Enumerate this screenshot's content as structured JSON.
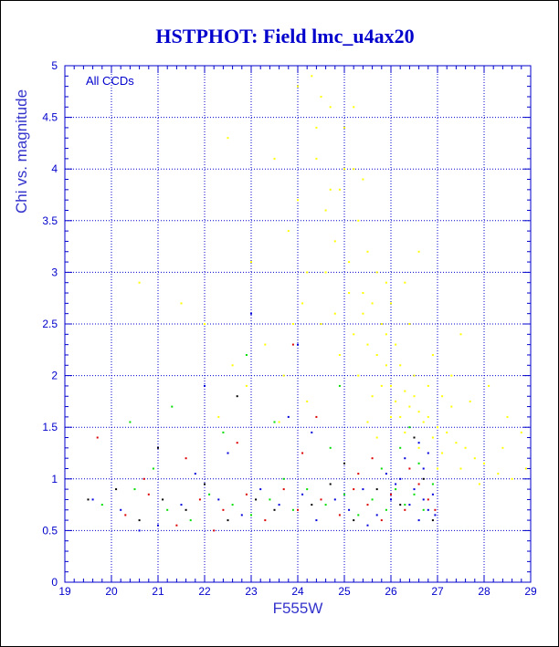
{
  "chart_data": {
    "type": "scatter",
    "title": "HSTPHOT: Field lmc_u4ax20",
    "xlabel": "F555W",
    "ylabel": "Chi vs. magnitude",
    "annotation": "All CCDs",
    "xlim": [
      19,
      29
    ],
    "ylim": [
      0,
      5
    ],
    "xticks": [
      19,
      20,
      21,
      22,
      23,
      24,
      25,
      26,
      27,
      28,
      29
    ],
    "yticks": [
      0,
      0.5,
      1,
      1.5,
      2,
      2.5,
      3,
      3.5,
      4,
      4.5,
      5
    ],
    "grid": true,
    "colors": {
      "axis": "#0000cc",
      "grid": "#0000cc",
      "title": "#0000cc",
      "yellow": "#ffff00",
      "green": "#00dd00",
      "red": "#dd0000",
      "blue": "#0000dd",
      "black": "#000000"
    },
    "series": [
      {
        "color": "#0000dd",
        "points": [
          [
            19.6,
            0.8
          ],
          [
            20.2,
            0.7
          ],
          [
            21.0,
            0.55
          ],
          [
            21.5,
            0.75
          ],
          [
            22.3,
            0.8
          ],
          [
            22.8,
            0.65
          ],
          [
            23.2,
            0.9
          ],
          [
            23.6,
            0.75
          ],
          [
            24.1,
            0.85
          ],
          [
            24.4,
            0.6
          ],
          [
            24.8,
            0.8
          ],
          [
            25.1,
            0.7
          ],
          [
            25.4,
            0.9
          ],
          [
            25.7,
            0.65
          ],
          [
            26.0,
            0.8
          ],
          [
            26.2,
            1.0
          ],
          [
            26.4,
            0.75
          ],
          [
            26.5,
            0.9
          ],
          [
            26.6,
            0.6
          ],
          [
            26.7,
            1.1
          ],
          [
            26.8,
            0.7
          ],
          [
            26.9,
            0.85
          ],
          [
            26.95,
            0.65
          ],
          [
            26.3,
            1.2
          ],
          [
            25.9,
            1.05
          ],
          [
            26.6,
            1.35
          ],
          [
            26.8,
            1.25
          ],
          [
            24.3,
            1.45
          ],
          [
            23.8,
            1.6
          ],
          [
            22.5,
            1.25
          ],
          [
            21.8,
            1.05
          ],
          [
            20.6,
            0.5
          ],
          [
            25.5,
            0.55
          ],
          [
            26.1,
            0.95
          ],
          [
            26.7,
            0.8
          ],
          [
            24.0,
            2.3
          ],
          [
            23.0,
            2.6
          ],
          [
            22.0,
            1.9
          ]
        ]
      },
      {
        "color": "#00dd00",
        "points": [
          [
            19.8,
            0.75
          ],
          [
            20.5,
            0.9
          ],
          [
            21.2,
            0.7
          ],
          [
            21.7,
            0.6
          ],
          [
            22.1,
            0.85
          ],
          [
            22.6,
            0.75
          ],
          [
            23.0,
            0.65
          ],
          [
            23.4,
            0.8
          ],
          [
            23.9,
            0.7
          ],
          [
            24.2,
            0.9
          ],
          [
            24.6,
            0.75
          ],
          [
            25.0,
            0.85
          ],
          [
            25.3,
            0.65
          ],
          [
            25.6,
            0.8
          ],
          [
            25.9,
            0.7
          ],
          [
            26.1,
            0.9
          ],
          [
            26.3,
            0.75
          ],
          [
            26.5,
            0.85
          ],
          [
            26.7,
            0.7
          ],
          [
            26.9,
            0.95
          ],
          [
            26.6,
            1.15
          ],
          [
            26.2,
            1.3
          ],
          [
            25.8,
            1.1
          ],
          [
            24.7,
            1.3
          ],
          [
            23.5,
            1.55
          ],
          [
            22.4,
            1.45
          ],
          [
            21.3,
            1.7
          ],
          [
            20.4,
            1.55
          ],
          [
            22.9,
            2.2
          ],
          [
            24.9,
            1.9
          ],
          [
            26.4,
            1.5
          ],
          [
            20.9,
            1.1
          ],
          [
            23.7,
            1.0
          ]
        ]
      },
      {
        "color": "#dd0000",
        "points": [
          [
            19.7,
            1.4
          ],
          [
            20.3,
            0.65
          ],
          [
            20.8,
            0.85
          ],
          [
            21.4,
            0.55
          ],
          [
            21.9,
            0.8
          ],
          [
            22.4,
            0.7
          ],
          [
            22.9,
            0.85
          ],
          [
            23.3,
            0.6
          ],
          [
            23.7,
            0.9
          ],
          [
            24.0,
            0.7
          ],
          [
            24.5,
            0.8
          ],
          [
            24.9,
            0.65
          ],
          [
            25.2,
            0.9
          ],
          [
            25.5,
            0.75
          ],
          [
            25.8,
            0.6
          ],
          [
            26.0,
            0.85
          ],
          [
            26.3,
            0.7
          ],
          [
            26.6,
            0.95
          ],
          [
            26.8,
            0.8
          ],
          [
            26.95,
            0.7
          ],
          [
            26.4,
            1.1
          ],
          [
            25.6,
            1.2
          ],
          [
            24.1,
            1.25
          ],
          [
            22.7,
            1.35
          ],
          [
            21.6,
            1.2
          ],
          [
            23.9,
            2.3
          ],
          [
            24.4,
            1.6
          ],
          [
            20.7,
            1.0
          ],
          [
            22.2,
            0.5
          ],
          [
            25.3,
            1.05
          ]
        ]
      },
      {
        "color": "#000000",
        "points": [
          [
            19.5,
            0.8
          ],
          [
            20.1,
            0.9
          ],
          [
            20.6,
            0.6
          ],
          [
            21.1,
            0.8
          ],
          [
            21.6,
            0.7
          ],
          [
            22.0,
            0.95
          ],
          [
            22.5,
            0.6
          ],
          [
            23.1,
            0.8
          ],
          [
            23.5,
            0.7
          ],
          [
            24.3,
            0.75
          ],
          [
            24.7,
            0.95
          ],
          [
            25.2,
            0.6
          ],
          [
            25.7,
            0.9
          ],
          [
            26.2,
            0.75
          ],
          [
            26.7,
            1.0
          ],
          [
            26.9,
            0.6
          ],
          [
            26.5,
            1.4
          ],
          [
            22.7,
            1.8
          ],
          [
            25.0,
            1.15
          ],
          [
            21.0,
            1.3
          ]
        ]
      },
      {
        "color": "#ffff00",
        "points": [
          [
            24.3,
            4.9
          ],
          [
            24.5,
            4.7
          ],
          [
            24.7,
            4.6
          ],
          [
            24.4,
            4.4
          ],
          [
            25.0,
            4.0
          ],
          [
            25.2,
            4.0
          ],
          [
            24.9,
            3.8
          ],
          [
            24.6,
            3.6
          ],
          [
            25.3,
            3.5
          ],
          [
            24.8,
            3.3
          ],
          [
            25.5,
            3.2
          ],
          [
            25.1,
            3.1
          ],
          [
            25.7,
            3.0
          ],
          [
            24.2,
            3.0
          ],
          [
            25.9,
            2.9
          ],
          [
            26.3,
            2.9
          ],
          [
            25.4,
            2.8
          ],
          [
            25.6,
            2.7
          ],
          [
            26.0,
            2.7
          ],
          [
            24.8,
            2.6
          ],
          [
            25.8,
            2.5
          ],
          [
            25.2,
            2.4
          ],
          [
            25.5,
            2.3
          ],
          [
            26.1,
            2.3
          ],
          [
            25.7,
            2.2
          ],
          [
            25.9,
            2.1
          ],
          [
            26.2,
            2.1
          ],
          [
            25.3,
            2.0
          ],
          [
            25.8,
            1.9
          ],
          [
            26.0,
            1.9
          ],
          [
            26.3,
            1.85
          ],
          [
            26.5,
            1.8
          ],
          [
            25.6,
            1.8
          ],
          [
            26.1,
            1.75
          ],
          [
            26.4,
            1.7
          ],
          [
            26.6,
            1.65
          ],
          [
            26.8,
            1.6
          ],
          [
            26.2,
            1.6
          ],
          [
            26.7,
            1.55
          ],
          [
            27.0,
            1.5
          ],
          [
            27.2,
            1.45
          ],
          [
            26.9,
            1.4
          ],
          [
            27.4,
            1.35
          ],
          [
            27.6,
            1.3
          ],
          [
            27.1,
            1.25
          ],
          [
            27.8,
            1.2
          ],
          [
            28.0,
            1.15
          ],
          [
            27.5,
            1.1
          ],
          [
            28.3,
            1.05
          ],
          [
            28.6,
            1.0
          ],
          [
            28.9,
            1.1
          ],
          [
            27.9,
            0.95
          ],
          [
            26.5,
            2.0
          ],
          [
            26.8,
            1.9
          ],
          [
            27.1,
            1.8
          ],
          [
            27.3,
            1.7
          ],
          [
            25.4,
            2.6
          ],
          [
            25.1,
            2.8
          ],
          [
            24.6,
            3.0
          ],
          [
            24.9,
            2.2
          ],
          [
            24.5,
            2.5
          ],
          [
            23.9,
            2.5
          ],
          [
            24.1,
            2.7
          ],
          [
            23.7,
            2.0
          ],
          [
            23.3,
            2.3
          ],
          [
            22.9,
            1.9
          ],
          [
            22.6,
            2.1
          ],
          [
            22.0,
            2.5
          ],
          [
            21.5,
            2.7
          ],
          [
            20.6,
            2.9
          ],
          [
            22.5,
            4.3
          ],
          [
            23.5,
            4.1
          ],
          [
            24.0,
            3.7
          ],
          [
            23.8,
            3.4
          ],
          [
            23.0,
            3.1
          ],
          [
            24.4,
            4.1
          ],
          [
            25.0,
            4.4
          ],
          [
            25.4,
            3.9
          ],
          [
            26.6,
            3.2
          ],
          [
            27.5,
            2.4
          ],
          [
            28.1,
            1.9
          ],
          [
            28.5,
            1.6
          ],
          [
            27.7,
            1.75
          ],
          [
            26.9,
            2.2
          ],
          [
            27.3,
            2.0
          ],
          [
            28.4,
            1.3
          ],
          [
            28.8,
            1.45
          ],
          [
            27.0,
            1.1
          ],
          [
            26.3,
            1.45
          ],
          [
            26.0,
            1.6
          ],
          [
            25.7,
            1.4
          ],
          [
            25.5,
            1.55
          ],
          [
            26.6,
            1.3
          ],
          [
            24.2,
            1.75
          ],
          [
            23.6,
            1.55
          ],
          [
            22.3,
            1.6
          ],
          [
            25.9,
            2.4
          ],
          [
            26.4,
            2.5
          ],
          [
            24.7,
            3.8
          ],
          [
            25.2,
            4.6
          ],
          [
            24.0,
            4.8
          ]
        ]
      }
    ]
  }
}
